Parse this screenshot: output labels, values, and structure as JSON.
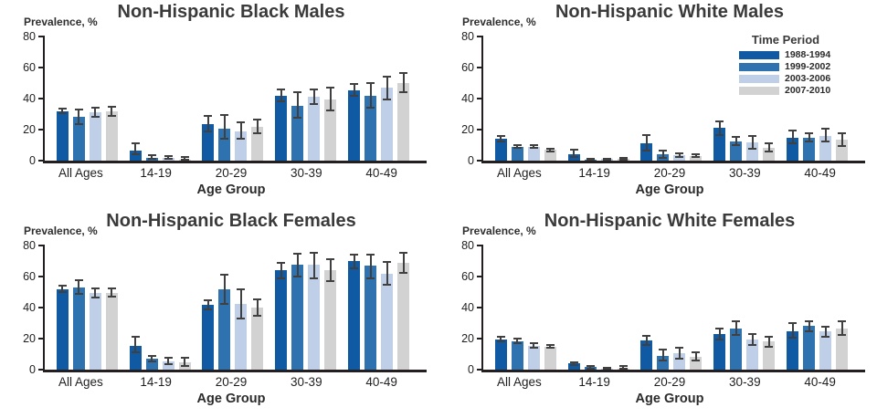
{
  "colors": {
    "series": [
      "#0f5aa2",
      "#2e73b0",
      "#c0cfe8",
      "#d2d2d2"
    ],
    "error_bar": "#404040",
    "axis": "#231f20"
  },
  "legend": {
    "title": "Time Period",
    "entries": [
      "1988-1994",
      "1999-2002",
      "2003-2006",
      "2007-2010"
    ]
  },
  "shared": {
    "ylabel": "Prevalence, %",
    "xlabel": "Age Group",
    "yticks": [
      0,
      20,
      40,
      60,
      80
    ],
    "ylim": [
      0,
      80
    ],
    "categories": [
      "All Ages",
      "14-19",
      "20-29",
      "30-39",
      "40-49"
    ]
  },
  "chart_data": [
    {
      "type": "bar",
      "title": "Non-Hispanic Black Males",
      "position": "top-left",
      "show_legend": false,
      "categories": [
        "All Ages",
        "14-19",
        "20-29",
        "30-39",
        "40-49"
      ],
      "series": [
        {
          "name": "1988-1994",
          "values": [
            32,
            6.5,
            23.5,
            42,
            45.5
          ],
          "err_lo": [
            2,
            3,
            5,
            4.5,
            4.5
          ],
          "err_hi": [
            2,
            5.5,
            6,
            4.5,
            4.5
          ]
        },
        {
          "name": "1999-2002",
          "values": [
            28,
            2,
            20.5,
            35.5,
            42
          ],
          "err_lo": [
            5,
            1.5,
            7,
            8.5,
            8.5
          ],
          "err_hi": [
            5.5,
            2,
            9.5,
            9,
            8.5
          ]
        },
        {
          "name": "2003-2006",
          "values": [
            31,
            1.5,
            19,
            41,
            47
          ],
          "err_lo": [
            3.5,
            1,
            5.5,
            5,
            8
          ],
          "err_hi": [
            3.5,
            2,
            6.5,
            5.5,
            8
          ]
        },
        {
          "name": "2007-2010",
          "values": [
            32,
            0.5,
            21.5,
            39.5,
            50
          ],
          "err_lo": [
            3.5,
            0.5,
            4.5,
            7.5,
            6.5
          ],
          "err_hi": [
            3.5,
            2.5,
            5.5,
            8,
            7
          ]
        }
      ]
    },
    {
      "type": "bar",
      "title": "Non-Hispanic White Males",
      "position": "top-right",
      "show_legend": true,
      "categories": [
        "All Ages",
        "14-19",
        "20-29",
        "30-39",
        "40-49"
      ],
      "series": [
        {
          "name": "1988-1994",
          "values": [
            14,
            4,
            11,
            21,
            15
          ],
          "err_lo": [
            2.5,
            2.5,
            5,
            5,
            4.5
          ],
          "err_hi": [
            2.5,
            3.5,
            6,
            5,
            5
          ]
        },
        {
          "name": "1999-2002",
          "values": [
            9,
            0.5,
            4,
            12.5,
            15
          ],
          "err_lo": [
            1.5,
            0.5,
            3,
            3,
            3.5
          ],
          "err_hi": [
            1.5,
            1,
            3,
            3.5,
            3.5
          ]
        },
        {
          "name": "2003-2006",
          "values": [
            9,
            1,
            3.5,
            11.5,
            16
          ],
          "err_lo": [
            1.5,
            1,
            2,
            4.5,
            4
          ],
          "err_hi": [
            1.5,
            1,
            2,
            5,
            5
          ]
        },
        {
          "name": "2007-2010",
          "values": [
            7,
            1,
            3,
            8.5,
            13.5
          ],
          "err_lo": [
            1.5,
            1,
            1.5,
            3,
            4.5
          ],
          "err_hi": [
            1.5,
            1.5,
            1.5,
            3.5,
            5
          ]
        }
      ]
    },
    {
      "type": "bar",
      "title": "Non-Hispanic Black Females",
      "position": "bottom-left",
      "show_legend": false,
      "categories": [
        "All Ages",
        "14-19",
        "20-29",
        "30-39",
        "40-49"
      ],
      "series": [
        {
          "name": "1988-1994",
          "values": [
            52,
            15.5,
            42,
            64,
            70
          ],
          "err_lo": [
            2.5,
            5,
            3.5,
            5.5,
            5
          ],
          "err_hi": [
            3,
            6.5,
            3.5,
            5.5,
            4.5
          ]
        },
        {
          "name": "1999-2002",
          "values": [
            53,
            7,
            51.5,
            67.5,
            67
          ],
          "err_lo": [
            4.5,
            2.5,
            10,
            8,
            8.5
          ],
          "err_hi": [
            5,
            2.5,
            10,
            8,
            7.5
          ]
        },
        {
          "name": "2003-2006",
          "values": [
            49.5,
            5.5,
            42.5,
            67.5,
            62
          ],
          "err_lo": [
            3.5,
            2.5,
            10,
            9,
            8
          ],
          "err_hi": [
            3.5,
            2.5,
            10,
            8.5,
            8
          ]
        },
        {
          "name": "2007-2010",
          "values": [
            49.5,
            5,
            40,
            64,
            69
          ],
          "err_lo": [
            3,
            3,
            6,
            7.5,
            7
          ],
          "err_hi": [
            3.5,
            3.5,
            6,
            7.5,
            7
          ]
        }
      ]
    },
    {
      "type": "bar",
      "title": "Non-Hispanic White Females",
      "position": "bottom-right",
      "show_legend": false,
      "categories": [
        "All Ages",
        "14-19",
        "20-29",
        "30-39",
        "40-49"
      ],
      "series": [
        {
          "name": "1988-1994",
          "values": [
            19.5,
            4,
            19,
            23,
            25
          ],
          "err_lo": [
            2,
            1.5,
            3.5,
            4,
            5
          ],
          "err_hi": [
            2,
            1.5,
            3.5,
            4,
            5.5
          ]
        },
        {
          "name": "1999-2002",
          "values": [
            18.5,
            1.5,
            9,
            26.5,
            28
          ],
          "err_lo": [
            2,
            1.5,
            3.5,
            5,
            4
          ],
          "err_hi": [
            2,
            1.5,
            4.5,
            5,
            4
          ]
        },
        {
          "name": "2003-2006",
          "values": [
            15.5,
            0.5,
            10.5,
            19.5,
            24.5
          ],
          "err_lo": [
            2,
            0.5,
            4,
            4,
            4
          ],
          "err_hi": [
            2,
            1.5,
            4,
            4,
            4
          ]
        },
        {
          "name": "2007-2010",
          "values": [
            15,
            0.5,
            8.5,
            18,
            26.5
          ],
          "err_lo": [
            1.5,
            0.5,
            3,
            4,
            5
          ],
          "err_hi": [
            1.5,
            2.5,
            3.5,
            4,
            5
          ]
        }
      ]
    }
  ]
}
